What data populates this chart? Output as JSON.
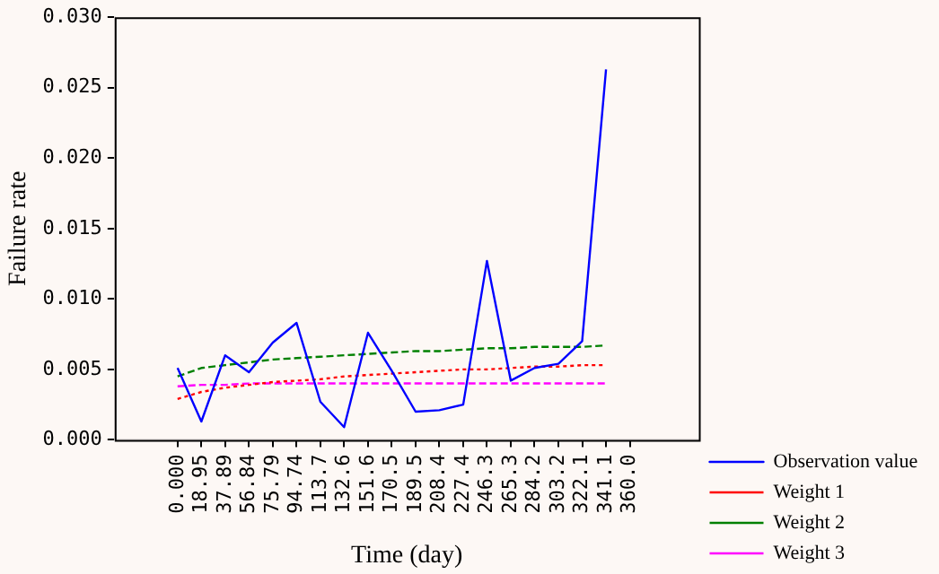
{
  "chart_data": {
    "type": "line",
    "xlabel": "Time (day)",
    "ylabel": "Failure rate",
    "x": [
      0,
      18.95,
      37.89,
      56.84,
      75.79,
      94.74,
      113.7,
      132.6,
      151.6,
      170.5,
      189.5,
      208.4,
      227.4,
      246.3,
      265.3,
      284.2,
      303.2,
      322.1,
      341.1
    ],
    "xlim": [
      -50,
      415
    ],
    "xticks": [
      {
        "value": 0,
        "label": "0.000"
      },
      {
        "value": 18.95,
        "label": "18.95"
      },
      {
        "value": 37.89,
        "label": "37.89"
      },
      {
        "value": 56.84,
        "label": "56.84"
      },
      {
        "value": 75.79,
        "label": "75.79"
      },
      {
        "value": 94.74,
        "label": "94.74"
      },
      {
        "value": 113.7,
        "label": "113.7"
      },
      {
        "value": 132.6,
        "label": "132.6"
      },
      {
        "value": 151.6,
        "label": "151.6"
      },
      {
        "value": 170.5,
        "label": "170.5"
      },
      {
        "value": 189.5,
        "label": "189.5"
      },
      {
        "value": 208.4,
        "label": "208.4"
      },
      {
        "value": 227.4,
        "label": "227.4"
      },
      {
        "value": 246.3,
        "label": "246.3"
      },
      {
        "value": 265.3,
        "label": "265.3"
      },
      {
        "value": 284.2,
        "label": "284.2"
      },
      {
        "value": 303.2,
        "label": "303.2"
      },
      {
        "value": 322.1,
        "label": "322.1"
      },
      {
        "value": 341.1,
        "label": "341.1"
      },
      {
        "value": 360,
        "label": "360.0"
      }
    ],
    "ylim": [
      0,
      0.03
    ],
    "yticks": [
      {
        "value": 0,
        "label": "0.000"
      },
      {
        "value": 0.005,
        "label": "0.005"
      },
      {
        "value": 0.01,
        "label": "0.010"
      },
      {
        "value": 0.015,
        "label": "0.015"
      },
      {
        "value": 0.02,
        "label": "0.020"
      },
      {
        "value": 0.025,
        "label": "0.025"
      },
      {
        "value": 0.03,
        "label": "0.030"
      }
    ],
    "grid": false,
    "legend": "bottom right",
    "marker": "none",
    "series": [
      {
        "name": "Observation value",
        "color": "#0000ff",
        "line_style": "solid",
        "values": [
          0.0051,
          0.0013,
          0.006,
          0.0048,
          0.0069,
          0.0083,
          0.0027,
          0.0009,
          0.0076,
          0.0049,
          0.002,
          0.0021,
          0.0025,
          0.0127,
          0.0042,
          0.0051,
          0.0054,
          0.007,
          0.0263
        ]
      },
      {
        "name": "Weight 1",
        "color": "#ff0000",
        "line_style": "dotted",
        "values": [
          0.0029,
          0.0034,
          0.0037,
          0.0039,
          0.0041,
          0.0042,
          0.0043,
          0.0045,
          0.0046,
          0.0047,
          0.0048,
          0.0049,
          0.005,
          0.005,
          0.0051,
          0.0052,
          0.0052,
          0.0053,
          0.0053
        ]
      },
      {
        "name": "Weight 2",
        "color": "#008000",
        "line_style": "dashed",
        "values": [
          0.0045,
          0.0051,
          0.0053,
          0.0055,
          0.0057,
          0.0058,
          0.0059,
          0.006,
          0.0061,
          0.0062,
          0.0063,
          0.0063,
          0.0064,
          0.0065,
          0.0065,
          0.0066,
          0.0066,
          0.0066,
          0.0067
        ]
      },
      {
        "name": "Weight 3",
        "color": "#ff00ff",
        "line_style": "dashed",
        "values": [
          0.0038,
          0.0039,
          0.0039,
          0.004,
          0.004,
          0.004,
          0.004,
          0.004,
          0.004,
          0.004,
          0.004,
          0.004,
          0.004,
          0.004,
          0.004,
          0.004,
          0.004,
          0.004,
          0.004
        ]
      }
    ]
  }
}
